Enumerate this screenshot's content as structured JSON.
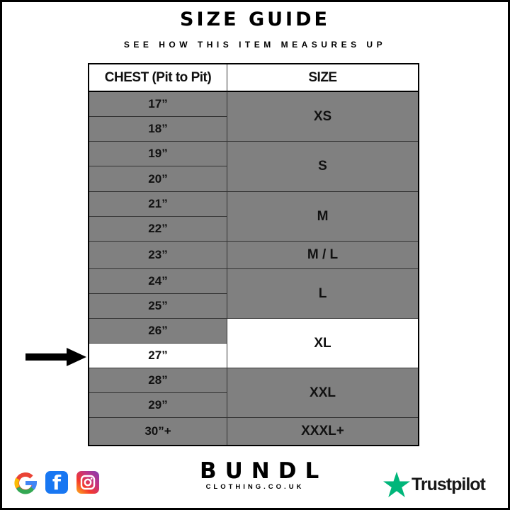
{
  "title": "SIZE GUIDE",
  "subtitle": "SEE HOW THIS ITEM MEASURES UP",
  "table": {
    "headers": [
      "CHEST (Pit to Pit)",
      "SIZE"
    ],
    "chest": [
      {
        "label": "17”"
      },
      {
        "label": "18”"
      },
      {
        "label": "19”"
      },
      {
        "label": "20”"
      },
      {
        "label": "21”"
      },
      {
        "label": "22”"
      },
      {
        "label": "23”"
      },
      {
        "label": "24”"
      },
      {
        "label": "25”"
      },
      {
        "label": "26”"
      },
      {
        "label": "27”",
        "highlight": true
      },
      {
        "label": "28”"
      },
      {
        "label": "29”"
      },
      {
        "label": "30”+"
      }
    ],
    "sizes": [
      {
        "label": "XS",
        "rows": 2
      },
      {
        "label": "S",
        "rows": 2
      },
      {
        "label": "M",
        "rows": 2
      },
      {
        "label": "M / L",
        "rows": 1
      },
      {
        "label": "L",
        "rows": 2
      },
      {
        "label": "XL",
        "rows": 2,
        "highlight": true
      },
      {
        "label": "XXL",
        "rows": 2
      },
      {
        "label": "XXXL+",
        "rows": 1
      }
    ],
    "row_color": "#808080",
    "highlight_color": "#ffffff"
  },
  "pointer": {
    "icon": "arrow-right-icon",
    "points_to": "27”"
  },
  "footer": {
    "social_icons": [
      "google-icon",
      "facebook-icon",
      "instagram-icon"
    ],
    "brand": "BUNDL",
    "brand_sub": "CLOTHING.CO.UK",
    "trustpilot": "Trustpilot",
    "trustpilot_color": "#00b67a"
  }
}
